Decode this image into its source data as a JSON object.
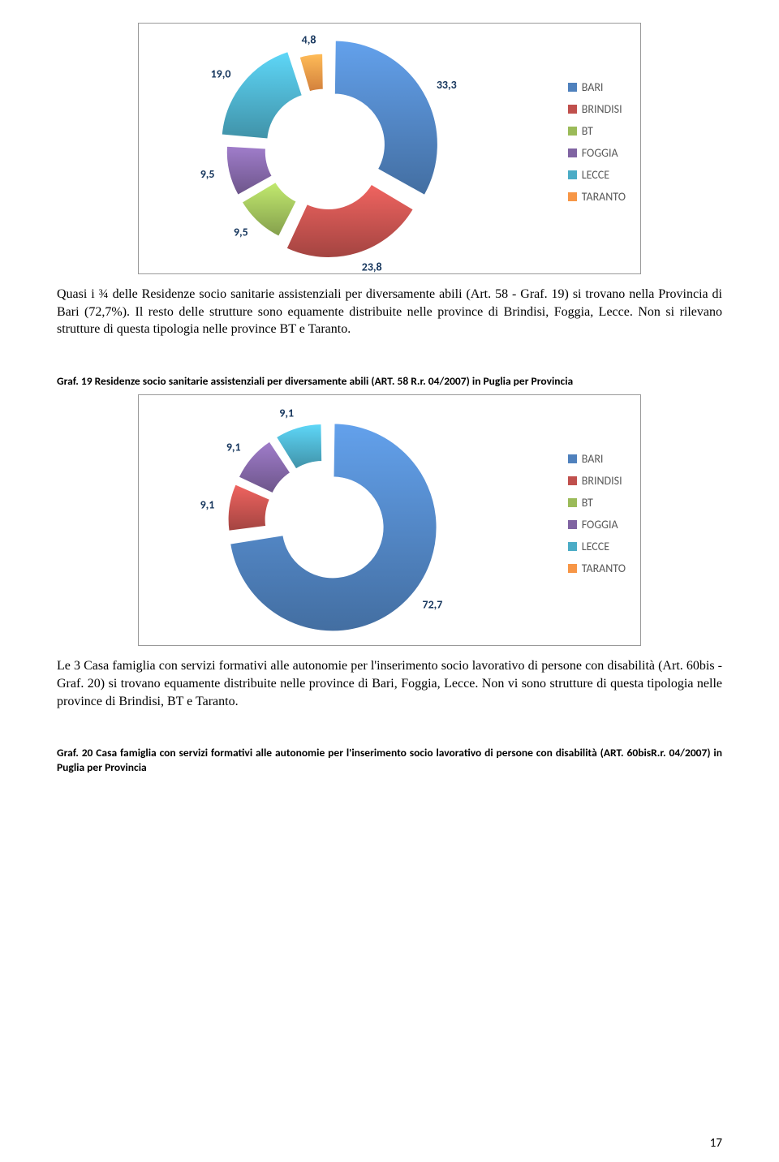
{
  "chart1": {
    "type": "doughnut",
    "inner_radius": 62,
    "outer_radius_base": 88,
    "explode": 12,
    "segments": [
      {
        "label": "BARI",
        "value": 33.3,
        "color": "#4f81bd",
        "pop": 1.0
      },
      {
        "label": "BRINDISI",
        "value": 23.8,
        "color": "#c0504d",
        "pop": 0.85
      },
      {
        "label": "BT",
        "value": 9.5,
        "color": "#9bbb59",
        "pop": 0.55
      },
      {
        "label": "FOGGIA",
        "value": 9.5,
        "color": "#8064a2",
        "pop": 0.55
      },
      {
        "label": "LECCE",
        "value": 19.0,
        "color": "#4bacc6",
        "pop": 0.77
      },
      {
        "label": "TARANTO",
        "value": 4.8,
        "color": "#f79646",
        "pop": 0.45
      }
    ],
    "label_color": "#17375e",
    "label_fontsize": 14,
    "background_color": "#ffffff"
  },
  "paragraph1": "Quasi i ¾ delle Residenze socio sanitarie assistenziali per diversamente abili (Art. 58 - Graf. 19) si trovano nella Provincia di Bari (72,7%). Il resto delle strutture sono equamente distribuite nelle province di Brindisi, Foggia, Lecce. Non si rilevano strutture di questa tipologia nelle province BT e Taranto.",
  "caption1": "Graf. 19 Residenze socio sanitarie assistenziali per diversamente abili (ART. 58 R.r. 04/2007) in Puglia per Provincia",
  "chart2": {
    "type": "doughnut",
    "inner_radius": 62,
    "outer_radius_base": 88,
    "explode": 12,
    "segments": [
      {
        "label": "BARI",
        "value": 72.7,
        "color": "#4f81bd",
        "pop": 1.0
      },
      {
        "label": "BRINDISI",
        "value": 9.1,
        "color": "#c0504d",
        "pop": 0.5
      },
      {
        "label": "BT",
        "value": 0.0,
        "color": "#9bbb59",
        "pop": 0.0
      },
      {
        "label": "FOGGIA",
        "value": 9.1,
        "color": "#8064a2",
        "pop": 0.5
      },
      {
        "label": "LECCE",
        "value": 9.1,
        "color": "#4bacc6",
        "pop": 0.5
      },
      {
        "label": "TARANTO",
        "value": 0.0,
        "color": "#f79646",
        "pop": 0.0
      }
    ],
    "label_color": "#17375e",
    "label_fontsize": 14,
    "background_color": "#ffffff"
  },
  "paragraph2": "Le 3 Casa famiglia con servizi formativi alle autonomie per l'inserimento socio lavorativo di persone con disabilità (Art. 60bis - Graf. 20) si trovano equamente distribuite nelle province di Bari, Foggia, Lecce. Non vi sono strutture di questa tipologia nelle province di Brindisi, BT e Taranto.",
  "caption2": "Graf. 20 Casa famiglia con servizi formativi alle autonomie per l'inserimento socio lavorativo di persone con disabilità (ART. 60bisR.r. 04/2007) in Puglia per Provincia",
  "legend_items": [
    {
      "label": "BARI",
      "color": "#4f81bd"
    },
    {
      "label": "BRINDISI",
      "color": "#c0504d"
    },
    {
      "label": "BT",
      "color": "#9bbb59"
    },
    {
      "label": "FOGGIA",
      "color": "#8064a2"
    },
    {
      "label": "LECCE",
      "color": "#4bacc6"
    },
    {
      "label": "TARANTO",
      "color": "#f79646"
    }
  ],
  "page_number": "17"
}
